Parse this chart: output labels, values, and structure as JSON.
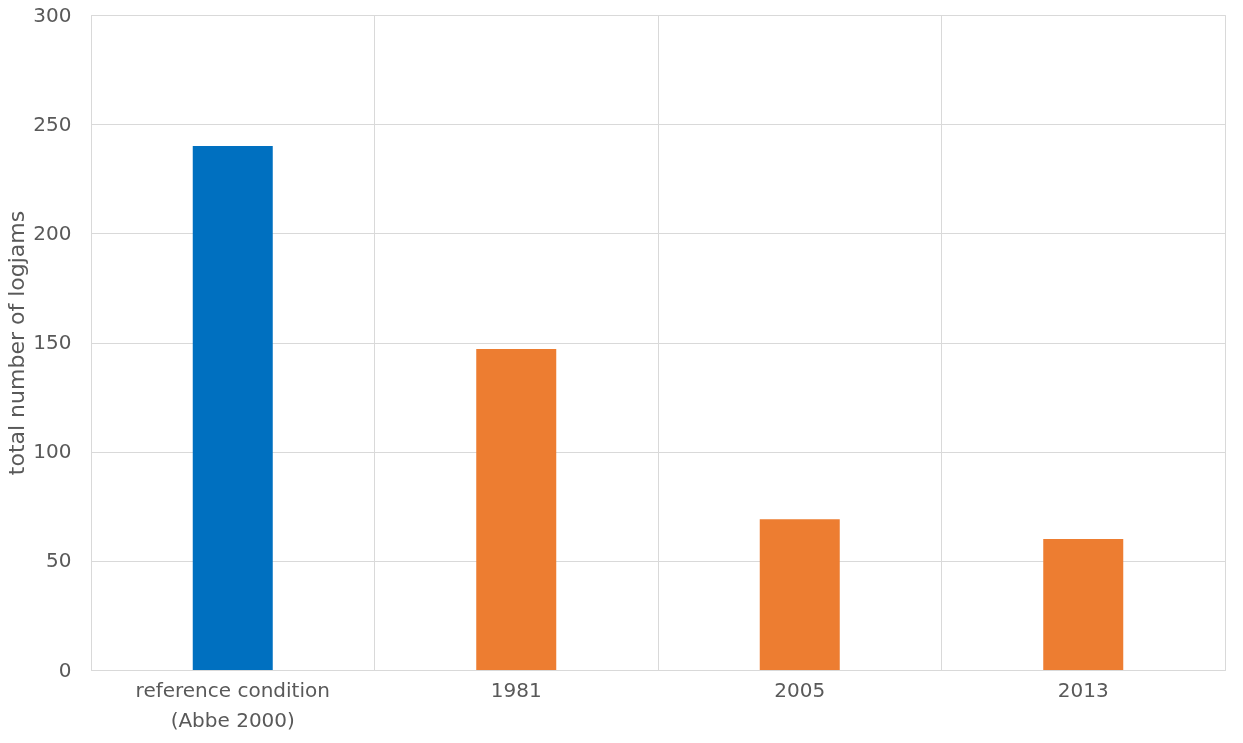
{
  "chart_data": {
    "type": "bar",
    "ylabel": "total number of logjams",
    "categories": [
      "reference condition\n(Abbe 2000)",
      "1981",
      "2005",
      "2013"
    ],
    "values": [
      240,
      147,
      69,
      60
    ],
    "colors": [
      "#0070c0",
      "#ed7d31",
      "#ed7d31",
      "#ed7d31"
    ],
    "ylim": [
      0,
      300
    ],
    "yticks": [
      0,
      50,
      100,
      150,
      200,
      250,
      300
    ],
    "grid": true
  }
}
